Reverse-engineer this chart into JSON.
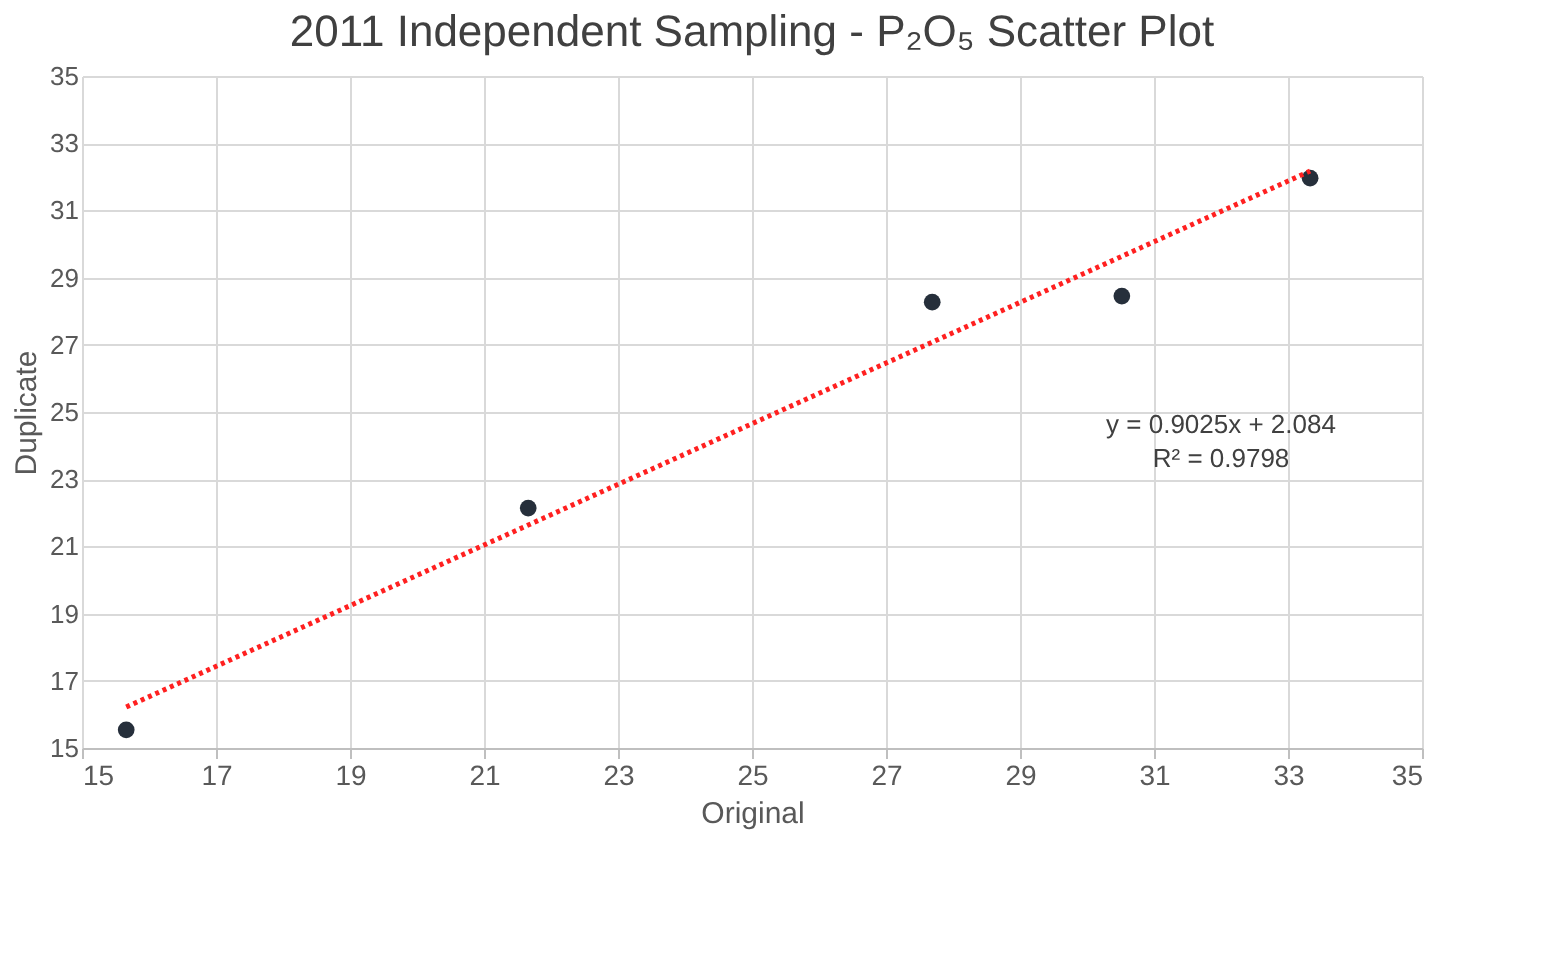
{
  "chart_data": {
    "type": "scatter",
    "title": "2011 Independent Sampling - P₂O₅ Scatter Plot",
    "xlabel": "Original",
    "ylabel": "Duplicate",
    "xlim": [
      15,
      35
    ],
    "xticks": [
      15,
      17,
      19,
      21,
      23,
      25,
      27,
      29,
      31,
      33,
      35
    ],
    "ylim": [
      15,
      35
    ],
    "yticks": [
      15,
      17,
      19,
      21,
      23,
      25,
      27,
      29,
      31,
      33,
      35
    ],
    "grid": true,
    "marker": "circle",
    "series": [
      {
        "type": "scatter",
        "color": "#262f3b",
        "x": [
          15.66,
          21.66,
          27.69,
          30.52,
          33.33
        ],
        "values": [
          15.54,
          22.14,
          28.27,
          28.45,
          31.96
        ]
      },
      {
        "type": "line",
        "color": "#ff2020",
        "line_style": "dotted",
        "marker": "none",
        "x": [
          15.66,
          33.33
        ],
        "values": [
          16.22,
          32.17
        ]
      }
    ],
    "annotations": [
      "y = 0.9025x + 2.084",
      "R² = 0.9798"
    ]
  }
}
